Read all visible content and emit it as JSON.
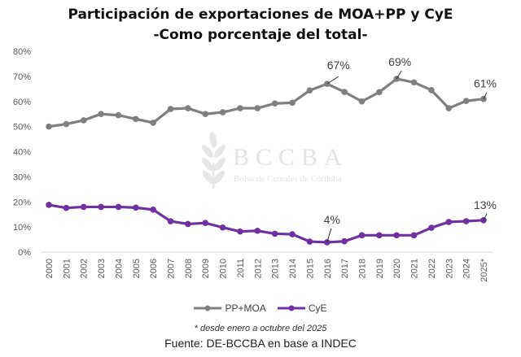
{
  "chart_data": {
    "type": "line",
    "title": "Participación de exportaciones de MOA+PP y CyE",
    "subtitle": "-Como porcentaje del total-",
    "xlabel": "",
    "ylabel": "",
    "ylim": [
      0,
      80
    ],
    "yticks": [
      "0%",
      "10%",
      "20%",
      "30%",
      "40%",
      "50%",
      "60%",
      "70%",
      "80%"
    ],
    "grid": false,
    "legend_position": "bottom",
    "categories": [
      "2000",
      "2001",
      "2002",
      "2003",
      "2004",
      "2005",
      "2006",
      "2007",
      "2008",
      "2009",
      "2010",
      "2011",
      "2012",
      "2013",
      "2014",
      "2015",
      "2016",
      "2017",
      "2018",
      "2019",
      "2020",
      "2021",
      "2022",
      "2023",
      "2024",
      "2025*"
    ],
    "series": [
      {
        "name": "PP+MOA",
        "color": "#7f7f7f",
        "values": [
          50,
          51,
          52.5,
          55,
          54.5,
          53,
          51.5,
          57,
          57.3,
          55,
          55.7,
          57.3,
          57.3,
          59.2,
          59.5,
          64.4,
          67,
          63.8,
          60,
          63.7,
          69,
          67.6,
          64.5,
          57.3,
          60.2,
          61
        ]
      },
      {
        "name": "CyE",
        "color": "#7030a0",
        "values": [
          18.8,
          17.6,
          18,
          18,
          18,
          17.7,
          16.9,
          12.3,
          11.2,
          11.6,
          9.8,
          8.2,
          8.5,
          7.3,
          7.1,
          4.2,
          3.9,
          4.3,
          6.7,
          6.7,
          6.7,
          6.7,
          9.7,
          12,
          12.3,
          12.7
        ]
      }
    ],
    "annotations": [
      {
        "series": 0,
        "index": 16,
        "text": "67%"
      },
      {
        "series": 0,
        "index": 20,
        "text": "69%"
      },
      {
        "series": 0,
        "index": 25,
        "text": "61%"
      },
      {
        "series": 1,
        "index": 16,
        "text": "4%"
      },
      {
        "series": 1,
        "index": 25,
        "text": "13%"
      }
    ]
  },
  "watermark": {
    "name": "BCCBA",
    "subtitle": "Bolsa de Cereales de Córdoba"
  },
  "footnote": "* desde enero a octubre del 2025",
  "source": "Fuente: DE-BCCBA en base a INDEC"
}
